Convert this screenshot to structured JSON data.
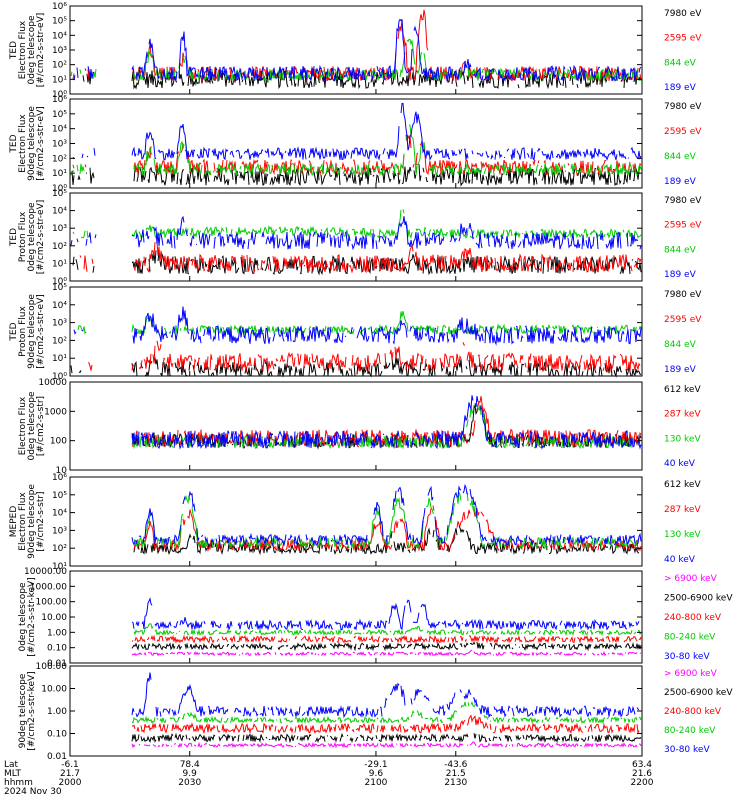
{
  "chart_data": [
    {
      "type": "line",
      "ylabel": [
        "TED",
        "Electron Flux",
        "0deg telescope",
        "[#/cm2-s-str-eV]"
      ],
      "yscale": "log",
      "ylim": [
        1,
        1000000
      ],
      "yticks": [
        "10⁰",
        "10¹",
        "10²",
        "10³",
        "10⁴",
        "10⁵",
        "10⁶"
      ],
      "legend_placement": "right",
      "series": [
        {
          "name": "7980 eV",
          "color": "#000000",
          "segments": [
            [
              2012,
              2016,
              6
            ],
            [
              2019,
              2026,
              5
            ],
            [
              2085,
              2102,
              3
            ],
            [
              2121,
              2126,
              3
            ],
            [
              2134,
              2140,
              2
            ]
          ],
          "baseline": 10,
          "spread": 0.6
        },
        {
          "name": "2595 eV",
          "color": "#ff0000",
          "segments": [
            [
              2013,
              2017,
              1200
            ],
            [
              2025,
              2030,
              250
            ],
            [
              2107,
              2112,
              60000
            ],
            [
              2115,
              2120,
              300000
            ],
            [
              2132,
              2136,
              60
            ]
          ],
          "baseline": 25,
          "spread": 0.5
        },
        {
          "name": "844 eV",
          "color": "#00cc00",
          "segments": [
            [
              2013,
              2017,
              500
            ],
            [
              2025,
              2030,
              300
            ],
            [
              2110,
              2115,
              6000
            ],
            [
              2116,
              2119,
              400
            ],
            [
              2132,
              2137,
              30
            ]
          ],
          "baseline": 20,
          "spread": 0.4
        },
        {
          "name": "189 eV",
          "color": "#0000ff",
          "segments": [
            [
              2013,
              2017,
              2500
            ],
            [
              2026,
              2029,
              12000
            ],
            [
              2107,
              2111,
              200000
            ],
            [
              2113,
              2117,
              40000
            ],
            [
              2132,
              2137,
              80
            ]
          ],
          "baseline": 25,
          "spread": 0.5
        }
      ]
    },
    {
      "type": "line",
      "ylabel": [
        "TED",
        "Electron Flux",
        "90deg telescope",
        "[#/cm2-s-str-eV]"
      ],
      "yscale": "log",
      "ylim": [
        1,
        1000000
      ],
      "yticks": [
        "10⁰",
        "10¹",
        "10²",
        "10³",
        "10⁴",
        "10⁵",
        "10⁶"
      ],
      "legend_placement": "right",
      "series": [
        {
          "name": "7980 eV",
          "color": "#000000",
          "segments": [
            [
              2011,
              2016,
              8
            ],
            [
              2020,
              2027,
              6
            ],
            [
              2090,
              2104,
              4
            ],
            [
              2110,
              2118,
              15
            ],
            [
              2133,
              2140,
              3
            ]
          ],
          "baseline": 6,
          "spread": 0.6
        },
        {
          "name": "2595 eV",
          "color": "#ff0000",
          "segments": [
            [
              2013,
              2017,
              300
            ],
            [
              2025,
              2030,
              800
            ],
            [
              2110,
              2114,
              3000
            ],
            [
              2115,
              2119,
              2500
            ],
            [
              2132,
              2137,
              25
            ]
          ],
          "baseline": 25,
          "spread": 0.5
        },
        {
          "name": "844 eV",
          "color": "#00cc00",
          "segments": [
            [
              2013,
              2017,
              300
            ],
            [
              2025,
              2030,
              1000
            ],
            [
              2110,
              2115,
              9000
            ],
            [
              2116,
              2119,
              900
            ],
            [
              2132,
              2137,
              20
            ]
          ],
          "baseline": 18,
          "spread": 0.4
        },
        {
          "name": "189 eV",
          "color": "#0000ff",
          "segments": [
            [
              2013,
              2017,
              6000
            ],
            [
              2025,
              2029,
              10000
            ],
            [
              2108,
              2112,
              300000
            ],
            [
              2112,
              2118,
              60000
            ],
            [
              2131,
              2137,
              200
            ]
          ],
          "baseline": 200,
          "spread": 0.4
        }
      ]
    },
    {
      "type": "line",
      "ylabel": [
        "TED",
        "Proton Flux",
        "0deg telescope",
        "[#/cm2-s-str-eV]"
      ],
      "yscale": "log",
      "ylim": [
        1,
        100000
      ],
      "yticks": [
        "10⁰",
        "10¹",
        "10²",
        "10³",
        "10⁴",
        "10⁵"
      ],
      "legend_placement": "right",
      "series": [
        {
          "name": "7980 eV",
          "color": "#000000",
          "segments": [
            [
              2015,
              2020,
              25
            ],
            [
              2112,
              2116,
              20
            ],
            [
              2130,
              2137,
              10
            ]
          ],
          "baseline": 8,
          "spread": 0.5
        },
        {
          "name": "2595 eV",
          "color": "#ff0000",
          "segments": [
            [
              2015,
              2020,
              60
            ],
            [
              2112,
              2116,
              60
            ],
            [
              2131,
              2137,
              30
            ]
          ],
          "baseline": 10,
          "spread": 0.5
        },
        {
          "name": "844 eV",
          "color": "#00cc00",
          "segments": [
            [
              2013,
              2017,
              1000
            ],
            [
              2018,
              2105,
              700
            ],
            [
              2108,
              2112,
              8000
            ],
            [
              2112,
              2128,
              600
            ],
            [
              2130,
              2138,
              200
            ]
          ],
          "baseline": 500,
          "spread": 0.25
        },
        {
          "name": "189 eV",
          "color": "#0000ff",
          "segments": [
            [
              2012,
              2018,
              800
            ],
            [
              2025,
              2030,
              1500
            ],
            [
              2108,
              2112,
              3000
            ],
            [
              2130,
              2138,
              1200
            ]
          ],
          "baseline": 200,
          "spread": 0.5
        }
      ]
    },
    {
      "type": "line",
      "ylabel": [
        "TED",
        "Proton Flux",
        "90deg telescope",
        "[#/cm2-s-str-eV]"
      ],
      "yscale": "log",
      "ylim": [
        1,
        100000
      ],
      "yticks": [
        "10⁰",
        "10¹",
        "10²",
        "10³",
        "10⁴",
        "10⁵"
      ],
      "legend_placement": "right",
      "series": [
        {
          "name": "7980 eV",
          "color": "#000000",
          "segments": [
            [
              2015,
              2019,
              8
            ],
            [
              2104,
              2110,
              5
            ],
            [
              2130,
              2136,
              4
            ]
          ],
          "baseline": 2,
          "spread": 0.5
        },
        {
          "name": "2595 eV",
          "color": "#ff0000",
          "segments": [
            [
              2016,
              2020,
              40
            ],
            [
              2104,
              2110,
              30
            ],
            [
              2130,
              2136,
              25
            ]
          ],
          "baseline": 6,
          "spread": 0.5
        },
        {
          "name": "844 eV",
          "color": "#00cc00",
          "segments": [
            [
              2013,
              2017,
              1500
            ],
            [
              2018,
              2100,
              400
            ],
            [
              2108,
              2112,
              3000
            ],
            [
              2112,
              2128,
              150
            ],
            [
              2130,
              2140,
              20
            ]
          ],
          "baseline": 400,
          "spread": 0.25
        },
        {
          "name": "189 eV",
          "color": "#0000ff",
          "segments": [
            [
              2012,
              2018,
              1500
            ],
            [
              2025,
              2030,
              3000
            ],
            [
              2108,
              2112,
              2000
            ],
            [
              2130,
              2138,
              800
            ]
          ],
          "baseline": 200,
          "spread": 0.5
        }
      ]
    },
    {
      "type": "line",
      "ylabel": [
        "",
        "Electron Flux",
        "0deg telescope",
        "[#/cm2-s-str]"
      ],
      "yscale": "log",
      "ylim": [
        10,
        10000
      ],
      "yticks": [
        "10",
        "100",
        "1000",
        "10000"
      ],
      "legend_placement": "right",
      "series": [
        {
          "name": "612 keV",
          "color": "#000000",
          "segments": [
            [
              2135,
              2142,
              1500
            ]
          ],
          "baseline": 100,
          "spread": 0.25
        },
        {
          "name": "287 keV",
          "color": "#ff0000",
          "segments": [
            [
              2136,
              2143,
              1800
            ]
          ],
          "baseline": 120,
          "spread": 0.3
        },
        {
          "name": "130 keV",
          "color": "#00cc00",
          "segments": [
            [
              2133,
              2142,
              1700
            ]
          ],
          "baseline": 90,
          "spread": 0.2
        },
        {
          "name": "40 keV",
          "color": "#0000ff",
          "segments": [
            [
              2132,
              2142,
              2200
            ]
          ],
          "baseline": 110,
          "spread": 0.3
        }
      ]
    },
    {
      "type": "line",
      "ylabel": [
        "MEPED",
        "Electron Flux",
        "90deg telescope",
        "[#/cm2-s-str]"
      ],
      "yscale": "log",
      "ylim": [
        10,
        1000000
      ],
      "yticks": [
        "10¹",
        "10²",
        "10³",
        "10⁴",
        "10⁵",
        "10⁶"
      ],
      "legend_placement": "right",
      "series": [
        {
          "name": "612 keV",
          "color": "#000000",
          "segments": [
            [
              2029,
              2033,
              500
            ],
            [
              2104,
              2107,
              600
            ],
            [
              2118,
              2124,
              800
            ],
            [
              2128,
              2136,
              1500
            ]
          ],
          "baseline": 100,
          "spread": 0.3
        },
        {
          "name": "287 keV",
          "color": "#ff0000",
          "segments": [
            [
              2013,
              2017,
              2000
            ],
            [
              2026,
              2033,
              10000
            ],
            [
              2098,
              2103,
              3000
            ],
            [
              2106,
              2112,
              4000
            ],
            [
              2118,
              2124,
              15000
            ],
            [
              2128,
              2145,
              12000
            ]
          ],
          "baseline": 150,
          "spread": 0.3
        },
        {
          "name": "130 keV",
          "color": "#00cc00",
          "segments": [
            [
              2013,
              2017,
              5000
            ],
            [
              2026,
              2033,
              60000
            ],
            [
              2098,
              2103,
              10000
            ],
            [
              2105,
              2112,
              40000
            ],
            [
              2117,
              2123,
              50000
            ],
            [
              2126,
              2140,
              100000
            ]
          ],
          "baseline": 200,
          "spread": 0.3
        },
        {
          "name": "40 keV",
          "color": "#0000ff",
          "segments": [
            [
              2013,
              2017,
              10000
            ],
            [
              2026,
              2033,
              150000
            ],
            [
              2098,
              2103,
              20000
            ],
            [
              2105,
              2112,
              150000
            ],
            [
              2117,
              2123,
              200000
            ],
            [
              2126,
              2140,
              250000
            ]
          ],
          "baseline": 300,
          "spread": 0.3
        }
      ]
    },
    {
      "type": "line",
      "ylabel": [
        "",
        "0deg telescope",
        "[#/cm2-s-str-keV]"
      ],
      "yscale": "log",
      "ylim": [
        0.01,
        10000
      ],
      "yticks": [
        "0.01",
        "0.10",
        "1.00",
        "10.00",
        "100.00",
        "1000.00",
        "10000.00"
      ],
      "legend_placement": "right",
      "series": [
        {
          "name": "> 6900 keV",
          "color": "#ff00ff",
          "segments": [
            [
              2134,
              2138,
              0.06
            ]
          ],
          "baseline": 0.04,
          "spread": 0.1
        },
        {
          "name": "2500-6900 keV",
          "color": "#000000",
          "segments": [
            [
              2134,
              2140,
              0.15
            ]
          ],
          "baseline": 0.12,
          "spread": 0.2
        },
        {
          "name": "240-800 keV",
          "color": "#ff0000",
          "segments": [
            [
              2134,
              2142,
              0.4
            ]
          ],
          "baseline": 0.35,
          "spread": 0.2
        },
        {
          "name": "80-240 keV",
          "color": "#00cc00",
          "segments": [
            [
              2013,
              2017,
              3
            ],
            [
              2112,
              2118,
              2
            ]
          ],
          "baseline": 1,
          "spread": 0.15
        },
        {
          "name": "30-80 keV",
          "color": "#0000ff",
          "segments": [
            [
              2013,
              2017,
              100
            ],
            [
              2026,
              2029,
              6
            ],
            [
              2105,
              2109,
              60
            ],
            [
              2110,
              2114,
              100
            ],
            [
              2115,
              2120,
              50
            ]
          ],
          "baseline": 3,
          "spread": 0.3
        }
      ]
    },
    {
      "type": "line",
      "ylabel": [
        "",
        "90deg telescope",
        "[#/cm2-s-str-keV]"
      ],
      "yscale": "log",
      "ylim": [
        0.01,
        1000
      ],
      "yticks": [
        "0.01",
        "0.10",
        "1.00",
        "10.00",
        "100.00"
      ],
      "legend_placement": "right",
      "series": [
        {
          "name": "> 6900 keV",
          "color": "#ff00ff",
          "segments": [
            [
              2134,
              2138,
              0.05
            ]
          ],
          "baseline": 0.04,
          "spread": 0.1
        },
        {
          "name": "2500-6900 keV",
          "color": "#000000",
          "segments": [
            [
              2133,
              2139,
              0.12
            ]
          ],
          "baseline": 0.1,
          "spread": 0.2
        },
        {
          "name": "240-800 keV",
          "color": "#ff0000",
          "segments": [
            [
              2130,
              2142,
              1
            ]
          ],
          "baseline": 0.35,
          "spread": 0.25
        },
        {
          "name": "80-240 keV",
          "color": "#00cc00",
          "segments": [
            [
              2026,
              2033,
              2
            ],
            [
              2112,
              2118,
              3
            ],
            [
              2128,
              2142,
              8
            ]
          ],
          "baseline": 1,
          "spread": 0.15
        },
        {
          "name": "30-80 keV",
          "color": "#0000ff",
          "segments": [
            [
              2013,
              2017,
              300
            ],
            [
              2026,
              2033,
              50
            ],
            [
              2103,
              2112,
              80
            ],
            [
              2112,
              2122,
              40
            ],
            [
              2126,
              2140,
              30
            ]
          ],
          "baseline": 3,
          "spread": 0.3
        }
      ]
    }
  ],
  "x_axis": {
    "range": [
      1985,
      2200
    ],
    "ticks": [
      {
        "x": 1985,
        "lat": "-6.1",
        "mlt": "21.7",
        "hhmm": "2000"
      },
      {
        "x": 2030,
        "lat": "78.4",
        "mlt": "9.9",
        "hhmm": "2030"
      },
      {
        "x": 2100,
        "lat": "-29.1",
        "mlt": "9.6",
        "hhmm": "2100"
      },
      {
        "x": 2130,
        "lat": "-43.6",
        "mlt": "21.5",
        "hhmm": "2130"
      },
      {
        "x": 2200,
        "lat": "63.4",
        "mlt": "21.6",
        "hhmm": "2200"
      }
    ],
    "row_labels": [
      "Lat",
      "MLT",
      "hhmm"
    ],
    "date": "2024 Nov 30"
  },
  "colors": {
    "axis": "#000000",
    "background": "#ffffff"
  }
}
